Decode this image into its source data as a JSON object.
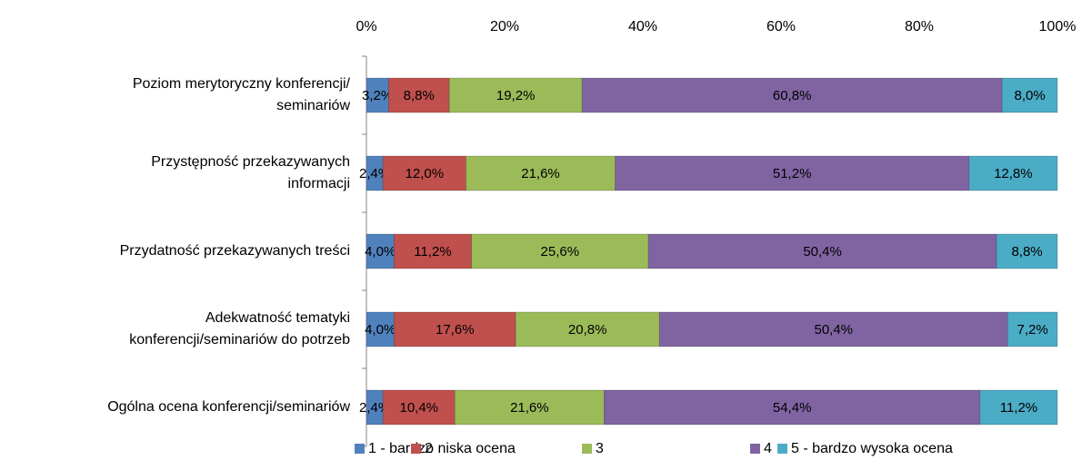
{
  "chart_data": {
    "type": "stacked-bar-horizontal",
    "categories": [
      [
        "Poziom merytoryczny konferencji/",
        "seminariów"
      ],
      [
        "Przystępność przekazywanych",
        "informacji"
      ],
      [
        "Przydatność przekazywanych treści"
      ],
      [
        "Adekwatność tematyki",
        "konferencji/seminariów do potrzeb"
      ],
      [
        "Ogólna ocena konferencji/seminariów"
      ]
    ],
    "series": [
      {
        "name": "1 - bardzo niska ocena",
        "color": "#4f81bd",
        "values": [
          3.2,
          2.4,
          4.0,
          4.0,
          2.4
        ],
        "value_labels": [
          "3,2%",
          "2,4%",
          "4,0%",
          "4,0%",
          "2,4%"
        ]
      },
      {
        "name": "2",
        "color": "#c0504d",
        "values": [
          8.8,
          12.0,
          11.2,
          17.6,
          10.4
        ],
        "value_labels": [
          "8,8%",
          "12,0%",
          "11,2%",
          "17,6%",
          "10,4%"
        ]
      },
      {
        "name": "3",
        "color": "#9bbb59",
        "values": [
          19.2,
          21.6,
          25.6,
          20.8,
          21.6
        ],
        "value_labels": [
          "19,2%",
          "21,6%",
          "25,6%",
          "20,8%",
          "21,6%"
        ]
      },
      {
        "name": "4",
        "color": "#8064a2",
        "values": [
          60.8,
          51.2,
          50.4,
          50.4,
          54.4
        ],
        "value_labels": [
          "60,8%",
          "51,2%",
          "50,4%",
          "50,4%",
          "54,4%"
        ]
      },
      {
        "name": "5 - bardzo wysoka ocena",
        "color": "#4bacc6",
        "values": [
          8.0,
          12.8,
          8.8,
          7.2,
          11.2
        ],
        "value_labels": [
          "8,0%",
          "12,8%",
          "8,8%",
          "7,2%",
          "11,2%"
        ]
      }
    ],
    "xlim": [
      0,
      100
    ],
    "xticks": [
      {
        "value": 0,
        "label": "0%"
      },
      {
        "value": 20,
        "label": "20%"
      },
      {
        "value": 40,
        "label": "40%"
      },
      {
        "value": 60,
        "label": "60%"
      },
      {
        "value": 80,
        "label": "80%"
      },
      {
        "value": 100,
        "label": "100%"
      }
    ],
    "legend": "bottom"
  }
}
